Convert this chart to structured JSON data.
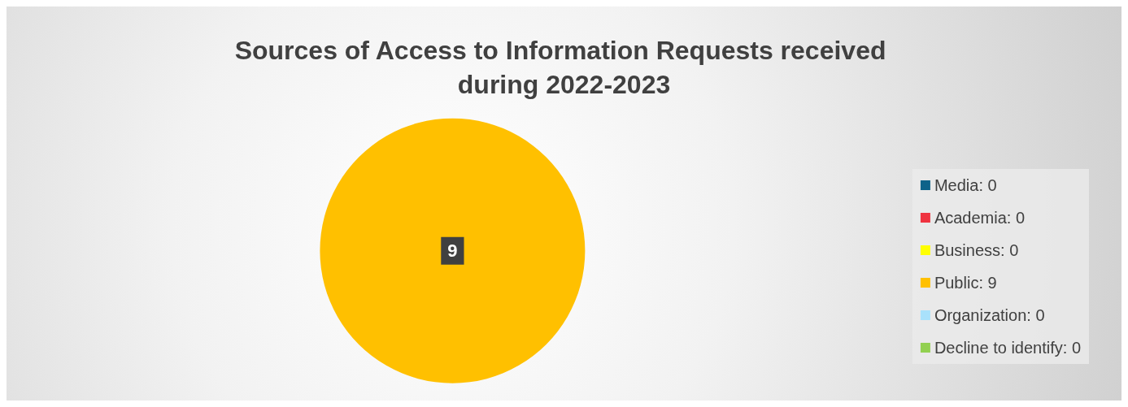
{
  "chart_data": {
    "type": "pie",
    "title": "Sources of Access to Information Requests received during 2022-2023",
    "categories": [
      "Media: 0",
      "Academia: 0",
      "Business: 0",
      "Public: 9",
      "Organization: 0",
      "Decline to identify: 0"
    ],
    "values": [
      0,
      0,
      0,
      9,
      0,
      0
    ],
    "colors": [
      "#0e6389",
      "#ef3340",
      "#ffff00",
      "#ffc000",
      "#a9e1fb",
      "#92d050"
    ],
    "value_labels": [
      null,
      null,
      null,
      "9",
      null,
      null
    ],
    "legend": "right"
  }
}
